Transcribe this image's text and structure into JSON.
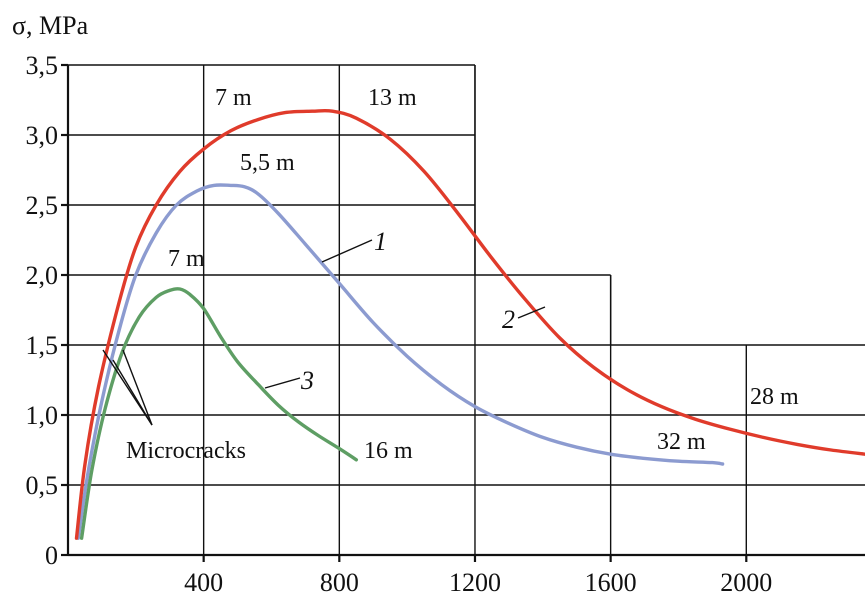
{
  "chart_data": {
    "type": "line",
    "ylabel": "σ, MPa",
    "xlabel": "",
    "xlim": [
      0,
      2350
    ],
    "ylim": [
      0,
      3.5
    ],
    "x_ticks": [
      400,
      800,
      1200,
      1600,
      2000
    ],
    "x_tick_labels": [
      "400",
      "800",
      "1200",
      "1600",
      "2000"
    ],
    "y_ticks": [
      0,
      0.5,
      1.0,
      1.5,
      2.0,
      2.5,
      3.0,
      3.5
    ],
    "y_tick_labels": [
      "0",
      "0,5",
      "1,0",
      "1,5",
      "2,0",
      "2,5",
      "3,0",
      "3,5"
    ],
    "grid": true,
    "grid_steps": [
      {
        "x_to": 1200,
        "y_top": 3.5
      },
      {
        "x_to": 1600,
        "y_top": 2.0
      },
      {
        "x_to": 2350,
        "y_top": 1.5
      }
    ],
    "colors": {
      "1": "#8c9bd0",
      "2": "#e03b2b",
      "3": "#5e9e64"
    },
    "series": [
      {
        "id": "1",
        "label": "1",
        "x": [
          30,
          60,
          100,
          150,
          200,
          260,
          320,
          380,
          430,
          480,
          520,
          560,
          620,
          700,
          800,
          900,
          1000,
          1100,
          1200,
          1300,
          1400,
          1500,
          1600,
          1700,
          1800,
          1900,
          1930
        ],
        "y": [
          0.12,
          0.6,
          1.1,
          1.6,
          2.0,
          2.3,
          2.5,
          2.6,
          2.64,
          2.64,
          2.63,
          2.58,
          2.44,
          2.22,
          1.94,
          1.66,
          1.42,
          1.22,
          1.06,
          0.94,
          0.84,
          0.77,
          0.72,
          0.69,
          0.67,
          0.66,
          0.65
        ]
      },
      {
        "id": "2",
        "label": "2",
        "x": [
          25,
          50,
          90,
          150,
          200,
          260,
          330,
          400,
          480,
          560,
          640,
          720,
          780,
          850,
          950,
          1050,
          1150,
          1250,
          1350,
          1450,
          1550,
          1650,
          1750,
          1850,
          1950,
          2050,
          2150,
          2250,
          2350
        ],
        "y": [
          0.12,
          0.65,
          1.2,
          1.8,
          2.2,
          2.5,
          2.74,
          2.9,
          3.03,
          3.11,
          3.16,
          3.17,
          3.17,
          3.12,
          2.97,
          2.74,
          2.44,
          2.12,
          1.82,
          1.55,
          1.34,
          1.18,
          1.06,
          0.97,
          0.9,
          0.84,
          0.79,
          0.75,
          0.72
        ]
      },
      {
        "id": "3",
        "label": "3",
        "x": [
          40,
          70,
          110,
          160,
          210,
          260,
          300,
          330,
          360,
          400,
          450,
          500,
          560,
          620,
          680,
          740,
          800,
          850
        ],
        "y": [
          0.12,
          0.6,
          1.05,
          1.45,
          1.7,
          1.84,
          1.89,
          1.9,
          1.86,
          1.76,
          1.56,
          1.38,
          1.22,
          1.07,
          0.95,
          0.85,
          0.76,
          0.68
        ]
      }
    ],
    "annotations": {
      "a_7m_top": "7 m",
      "a_13m": "13 m",
      "a_55m": "5,5 m",
      "a_7m_mid": "7 m",
      "a_16m": "16 m",
      "a_32m": "32 m",
      "a_28m": "28 m",
      "microcracks": "Microcracks"
    }
  }
}
